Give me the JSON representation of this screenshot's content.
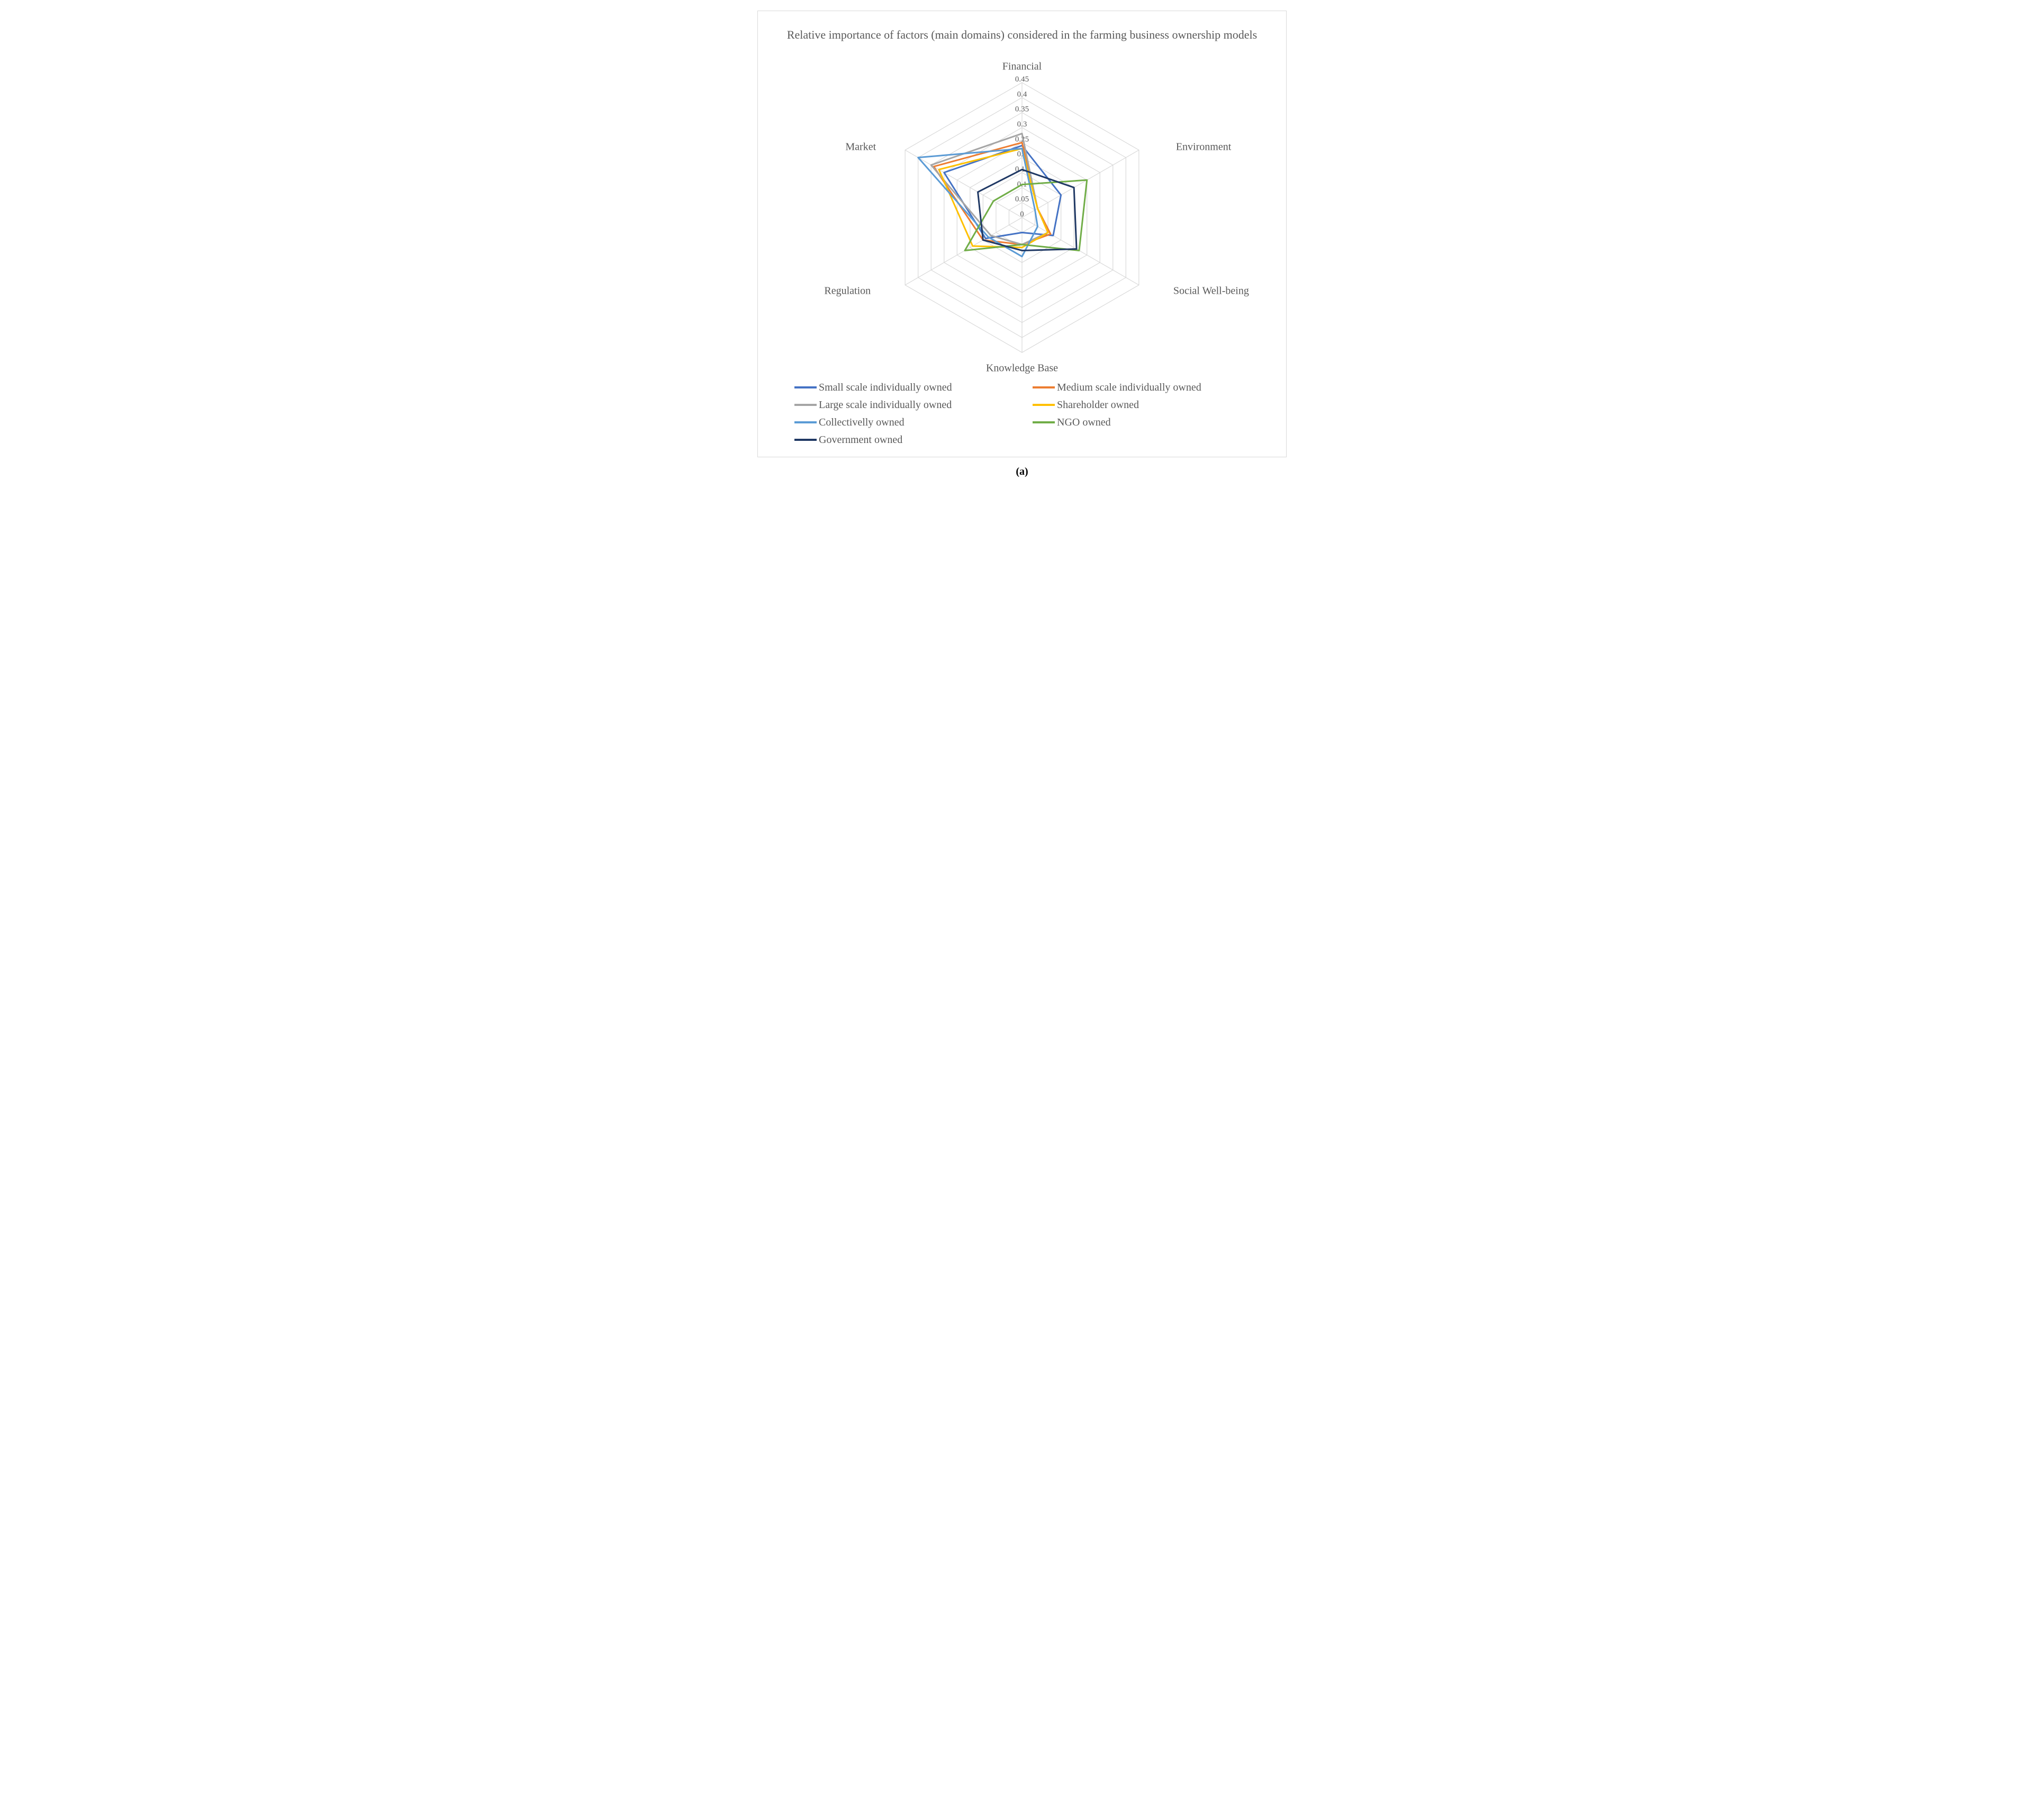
{
  "chart": {
    "type": "radar",
    "title": "Relative importance of factors (main domains) considered in the farming business ownership models",
    "sublabel": "(a)",
    "background_color": "#ffffff",
    "border_color": "#d9d9d9",
    "grid_color": "#d9d9d9",
    "text_color": "#595959",
    "title_fontsize": 22,
    "axis_label_fontsize": 20,
    "tick_label_fontsize": 15,
    "legend_fontsize": 20,
    "line_width": 3,
    "axes": [
      "Financial",
      "Environment",
      "Social Well-being",
      "Knowledge Base",
      "Regulation",
      "Market"
    ],
    "r_max": 0.45,
    "tick_step": 0.05,
    "ticks": [
      0,
      0.05,
      0.1,
      0.15,
      0.2,
      0.25,
      0.3,
      0.35,
      0.4,
      0.45
    ],
    "series": [
      {
        "name": "Small scale individually owned",
        "color": "#4472c4",
        "values": [
          0.24,
          0.15,
          0.12,
          0.05,
          0.14,
          0.3
        ]
      },
      {
        "name": "Medium scale individually owned",
        "color": "#ed7d31",
        "values": [
          0.25,
          0.06,
          0.11,
          0.09,
          0.15,
          0.34
        ]
      },
      {
        "name": "Large scale individually owned",
        "color": "#a5a5a5",
        "values": [
          0.28,
          0.06,
          0.1,
          0.09,
          0.12,
          0.35
        ]
      },
      {
        "name": "Shareholder owned",
        "color": "#ffc000",
        "values": [
          0.23,
          0.06,
          0.1,
          0.1,
          0.19,
          0.32
        ]
      },
      {
        "name": "Collectivelly owned",
        "color": "#5b9bd5",
        "values": [
          0.23,
          0.05,
          0.06,
          0.13,
          0.13,
          0.4
        ]
      },
      {
        "name": "NGO owned",
        "color": "#70ad47",
        "values": [
          0.11,
          0.25,
          0.22,
          0.09,
          0.22,
          0.11
        ]
      },
      {
        "name": "Government owned",
        "color": "#1f3864",
        "values": [
          0.16,
          0.2,
          0.21,
          0.11,
          0.15,
          0.17
        ]
      }
    ]
  }
}
